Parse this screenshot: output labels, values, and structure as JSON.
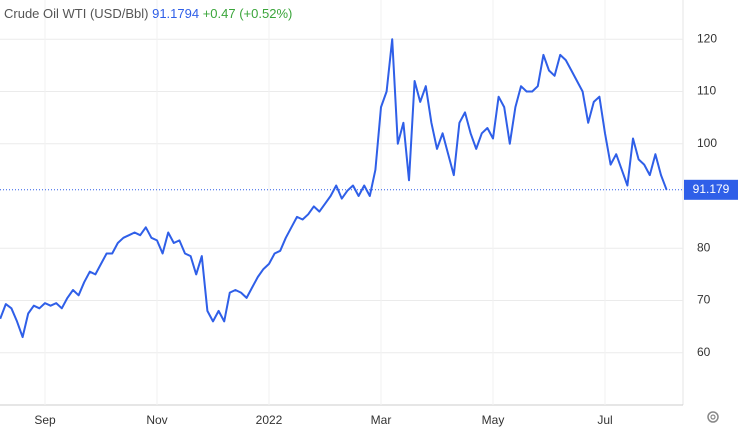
{
  "chart_data": {
    "type": "line",
    "title": "Crude Oil WTI (USD/Bbl)",
    "last_price": "91.1794",
    "change": "+0.47 (+0.52%)",
    "last_label": "91.179",
    "categories": [
      null,
      null,
      null,
      null,
      null,
      null,
      null,
      null,
      "Sep",
      null,
      null,
      null,
      null,
      null,
      null,
      null,
      null,
      null,
      null,
      null,
      null,
      null,
      null,
      null,
      null,
      null,
      null,
      null,
      "Nov",
      null,
      null,
      null,
      null,
      null,
      null,
      null,
      null,
      null,
      null,
      null,
      null,
      null,
      null,
      null,
      null,
      null,
      null,
      null,
      "2022",
      null,
      null,
      null,
      null,
      null,
      null,
      null,
      null,
      null,
      null,
      null,
      null,
      null,
      null,
      null,
      null,
      null,
      null,
      null,
      "Mar",
      null,
      null,
      null,
      null,
      null,
      null,
      null,
      null,
      null,
      null,
      null,
      null,
      null,
      null,
      null,
      null,
      null,
      null,
      null,
      "May",
      null,
      null,
      null,
      null,
      null,
      null,
      null,
      null,
      null,
      null,
      null,
      null,
      null,
      null,
      null,
      null,
      null,
      null,
      null,
      "Jul",
      null,
      null,
      null,
      null,
      null,
      null,
      null,
      null,
      null,
      null,
      null
    ],
    "series": [
      {
        "name": "Crude Oil WTI",
        "color": "#2f5fe8",
        "values": [
          66.5,
          69.3,
          68.5,
          66,
          63,
          67.5,
          69,
          68.5,
          69.5,
          69,
          69.5,
          68.5,
          70.5,
          72,
          71,
          73.5,
          75.5,
          75,
          77,
          79,
          79,
          81,
          82,
          82.5,
          83,
          82.5,
          84,
          82,
          81.5,
          79,
          83,
          81,
          81.5,
          79,
          78.5,
          75,
          78.5,
          68,
          66,
          68,
          66,
          71.5,
          72,
          71.5,
          70.5,
          72.5,
          74.5,
          76,
          77,
          79,
          79.5,
          82,
          84,
          86,
          85.5,
          86.5,
          88,
          87,
          88.5,
          90,
          92,
          89.5,
          91,
          92,
          90,
          92,
          90,
          95,
          107,
          110,
          120,
          100,
          104,
          93,
          112,
          108,
          111,
          104,
          99,
          102,
          98,
          94,
          104,
          106,
          102,
          99,
          102,
          103,
          101,
          109,
          107,
          100,
          107,
          111,
          110,
          110,
          111,
          117,
          114,
          113,
          117,
          116,
          114,
          112,
          110,
          104,
          108,
          109,
          102,
          96,
          98,
          95,
          92,
          101,
          97,
          96,
          94,
          98,
          94,
          91.1794
        ]
      }
    ],
    "ylim": [
      50,
      127.5
    ],
    "yticks": [
      60,
      70,
      80,
      100,
      110,
      120
    ],
    "grid": true
  }
}
